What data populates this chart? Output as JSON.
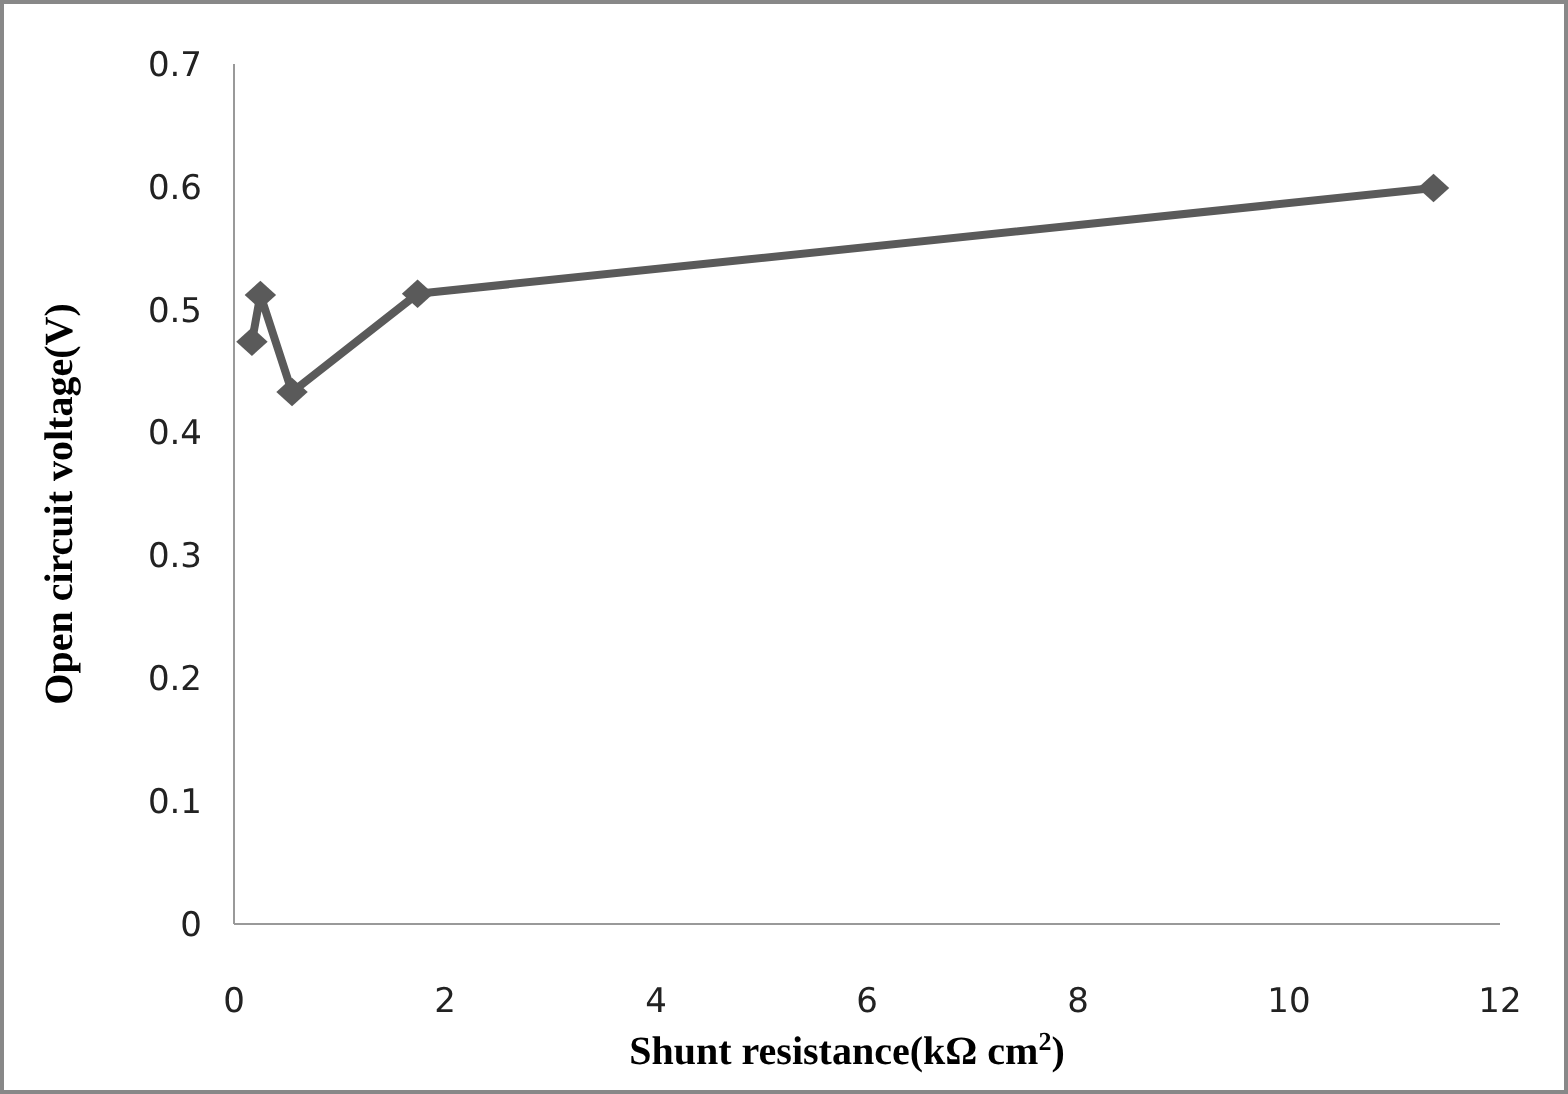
{
  "chart_data": {
    "type": "line",
    "xlabel": "Shunt resistance(kΩ cm$^{2}$)",
    "ylabel": "Open circuit voltage(V)",
    "x": [
      0.17,
      0.25,
      0.55,
      1.74,
      11.37
    ],
    "series": [
      {
        "color": "#5a5a5a",
        "values": [
          0.474,
          0.512,
          0.433,
          0.513,
          0.599
        ]
      }
    ],
    "xlim": [
      0,
      12
    ],
    "xticks": [
      0,
      2,
      4,
      6,
      8,
      10,
      12
    ],
    "ylim": [
      0,
      0.7
    ],
    "yticks": [
      0,
      0.1,
      0.2,
      0.3,
      0.4,
      0.5,
      0.6,
      0.7
    ],
    "marker": "diamond",
    "grid": false
  }
}
